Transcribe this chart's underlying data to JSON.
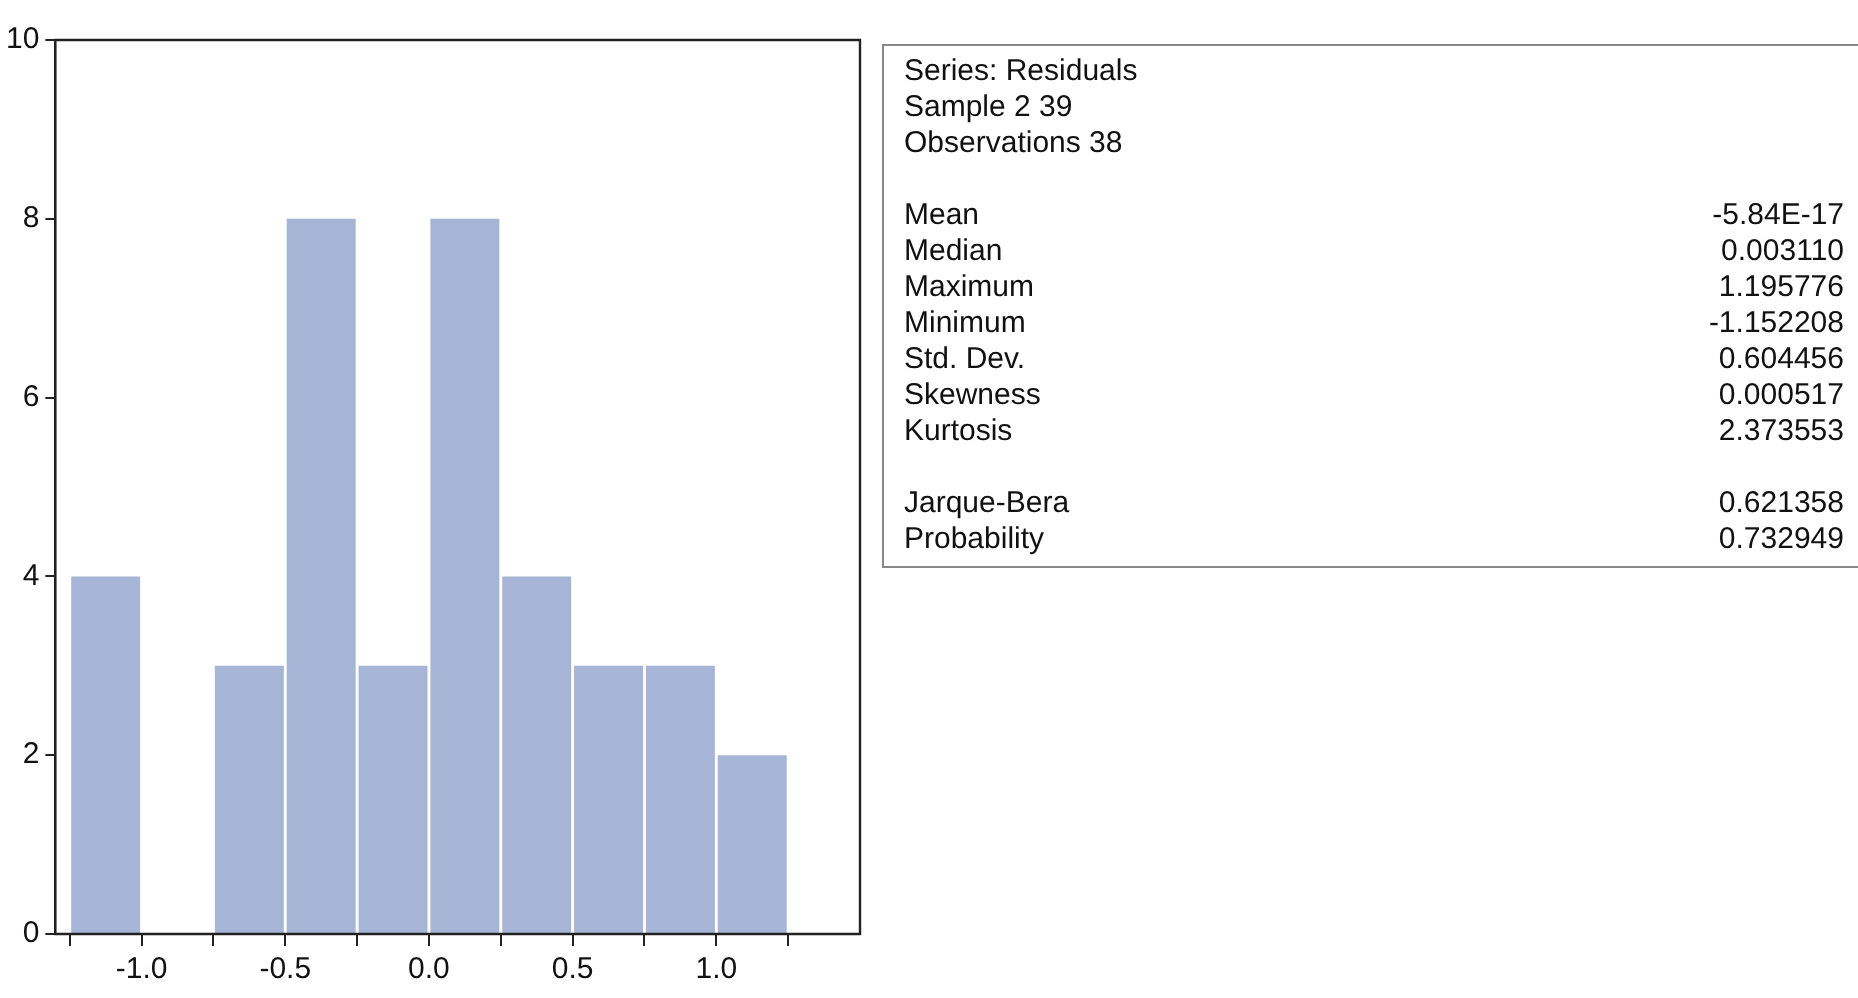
{
  "chart_data": [
    {
      "type": "histogram",
      "bins": [
        -1.25,
        -1.0,
        -0.75,
        -0.5,
        -0.25,
        0.0,
        0.25,
        0.5,
        0.75,
        1.0,
        1.25
      ],
      "values": [
        4,
        0,
        3,
        8,
        3,
        8,
        4,
        3,
        3,
        2
      ],
      "color": "#a6b5d6",
      "xlim": [
        -1.3,
        1.5
      ],
      "xticks": [
        {
          "value": -1.25,
          "label": null
        },
        {
          "value": -1.0,
          "label": "-1.0"
        },
        {
          "value": -0.75,
          "label": null
        },
        {
          "value": -0.5,
          "label": "-0.5"
        },
        {
          "value": -0.25,
          "label": null
        },
        {
          "value": 0.0,
          "label": "0.0"
        },
        {
          "value": 0.25,
          "label": null
        },
        {
          "value": 0.5,
          "label": "0.5"
        },
        {
          "value": 0.75,
          "label": null
        },
        {
          "value": 1.0,
          "label": "1.0"
        },
        {
          "value": 1.25,
          "label": null
        }
      ],
      "ylim": [
        0,
        10
      ],
      "yticks": [
        0,
        2,
        4,
        6,
        8,
        10
      ],
      "grid": false,
      "legend": false
    },
    {
      "type": "other",
      "annotations": [
        "Series: Residuals",
        "Sample 2 39",
        "Observations 38",
        "Mean\t-5.84E-17",
        "Median\t0.003110",
        "Maximum\t1.195776",
        "Minimum\t-1.152208",
        "Std. Dev.\t0.604456",
        "Skewness\t0.000517",
        "Kurtosis\t2.373553",
        "Jarque-Bera\t0.621358",
        "Probability\t0.732949"
      ]
    }
  ]
}
